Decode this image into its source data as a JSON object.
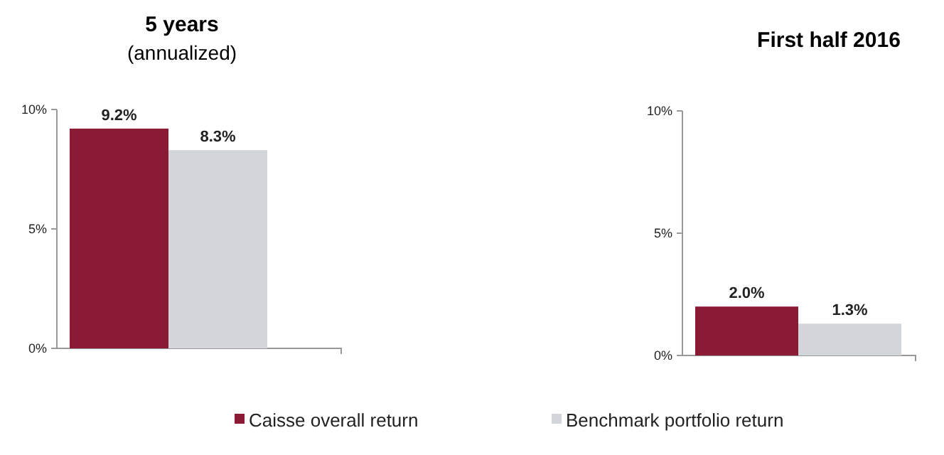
{
  "chart_data": [
    {
      "type": "bar",
      "title": "5 years",
      "subtitle": "(annualized)",
      "categories": [
        null
      ],
      "series": [
        {
          "name": "Caisse overall return",
          "color": "#8b1a35",
          "values": [
            9.2
          ],
          "value_labels": [
            "9.2%"
          ]
        },
        {
          "name": "Benchmark portfolio return",
          "color": "#d2d5da",
          "values": [
            8.3
          ],
          "value_labels": [
            "8.3%"
          ]
        }
      ],
      "ylim": [
        0,
        10
      ],
      "yticks": [
        {
          "value": 0,
          "label": "0%"
        },
        {
          "value": 5,
          "label": "5%"
        },
        {
          "value": 10,
          "label": "10%"
        }
      ],
      "legend": "bottom",
      "grid": false
    },
    {
      "type": "bar",
      "title": "First half 2016",
      "categories": [
        null
      ],
      "series": [
        {
          "color": "#8b1a35",
          "values": [
            2.0
          ],
          "value_labels": [
            "2.0%"
          ]
        },
        {
          "color": "#d2d5da",
          "values": [
            1.3
          ],
          "value_labels": [
            "1.3%"
          ]
        }
      ],
      "ylim": [
        0,
        10
      ],
      "yticks": [
        {
          "value": 0,
          "label": "0%"
        },
        {
          "value": 5,
          "label": "5%"
        },
        {
          "value": 10,
          "label": "10%"
        }
      ],
      "grid": false
    }
  ]
}
